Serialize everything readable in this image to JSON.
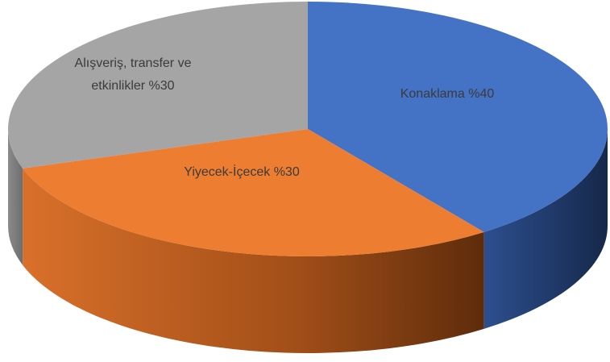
{
  "chart_data": {
    "type": "pie",
    "categories": [
      "Konaklama",
      "Yiyecek-İçecek",
      "Alışveriş, transfer ve etkinlikler"
    ],
    "values": [
      40,
      30,
      30
    ],
    "value_labels": [
      "%40",
      "%30",
      "%30"
    ],
    "colors": [
      "#4472c4",
      "#ed7d31",
      "#a5a5a5"
    ]
  }
}
